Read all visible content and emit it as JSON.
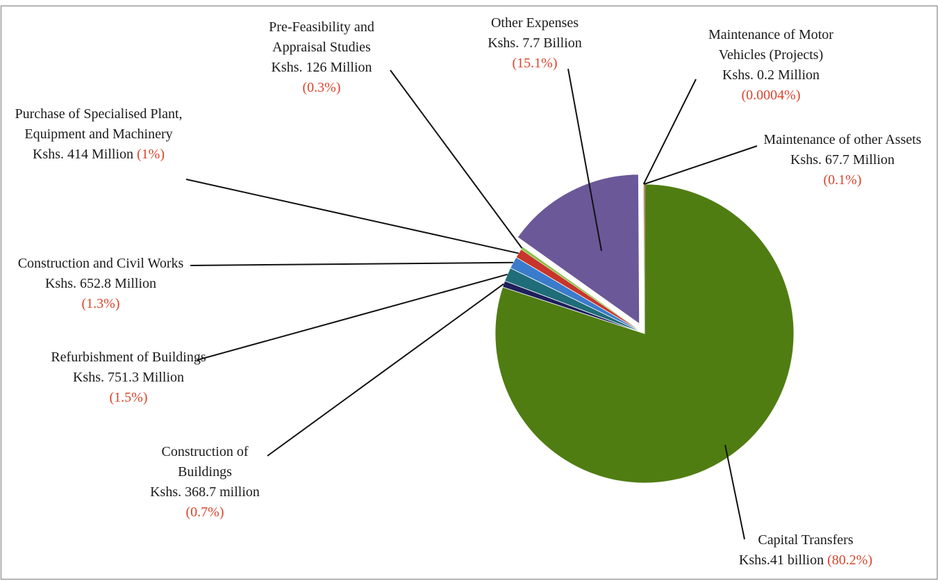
{
  "chart_data": {
    "type": "pie",
    "categories": [
      "Capital Transfers",
      "Construction of Buildings",
      "Refurbishment of Buildings",
      "Construction and Civil Works",
      "Purchase of Specialised Plant, Equipment and Machinery",
      "Pre-Feasibility and Appraisal Studies",
      "Other Expenses",
      "Maintenance of Motor Vehicles (Projects)",
      "Maintenance of other Assets"
    ],
    "amounts": [
      "Kshs.41 billion",
      "Kshs. 368.7 million",
      "Kshs. 751.3 Million",
      "Kshs. 652.8 Million",
      "Kshs. 414 Million",
      "Kshs. 126 Million",
      "Kshs. 7.7 Billion",
      "Kshs. 0.2 Million",
      "Kshs. 67.7 Million"
    ],
    "values": [
      80.2,
      0.7,
      1.5,
      1.3,
      1,
      0.3,
      15.1,
      0.0004,
      0.1
    ],
    "value_labels": [
      "(80.2%)",
      "(0.7%)",
      "(1.5%)",
      "(1.3%)",
      "(1%)",
      "(0.3%)",
      "(15.1%)",
      "(0.0004%)",
      "(0.1%)"
    ],
    "colors": [
      "#4f7d12",
      "#1e1f5c",
      "#1f6d78",
      "#3b7bcc",
      "#c8352a",
      "#8cc34a",
      "#6a5899",
      "#c0392b",
      "#c9463d"
    ],
    "exploded": "Other Expenses"
  }
}
